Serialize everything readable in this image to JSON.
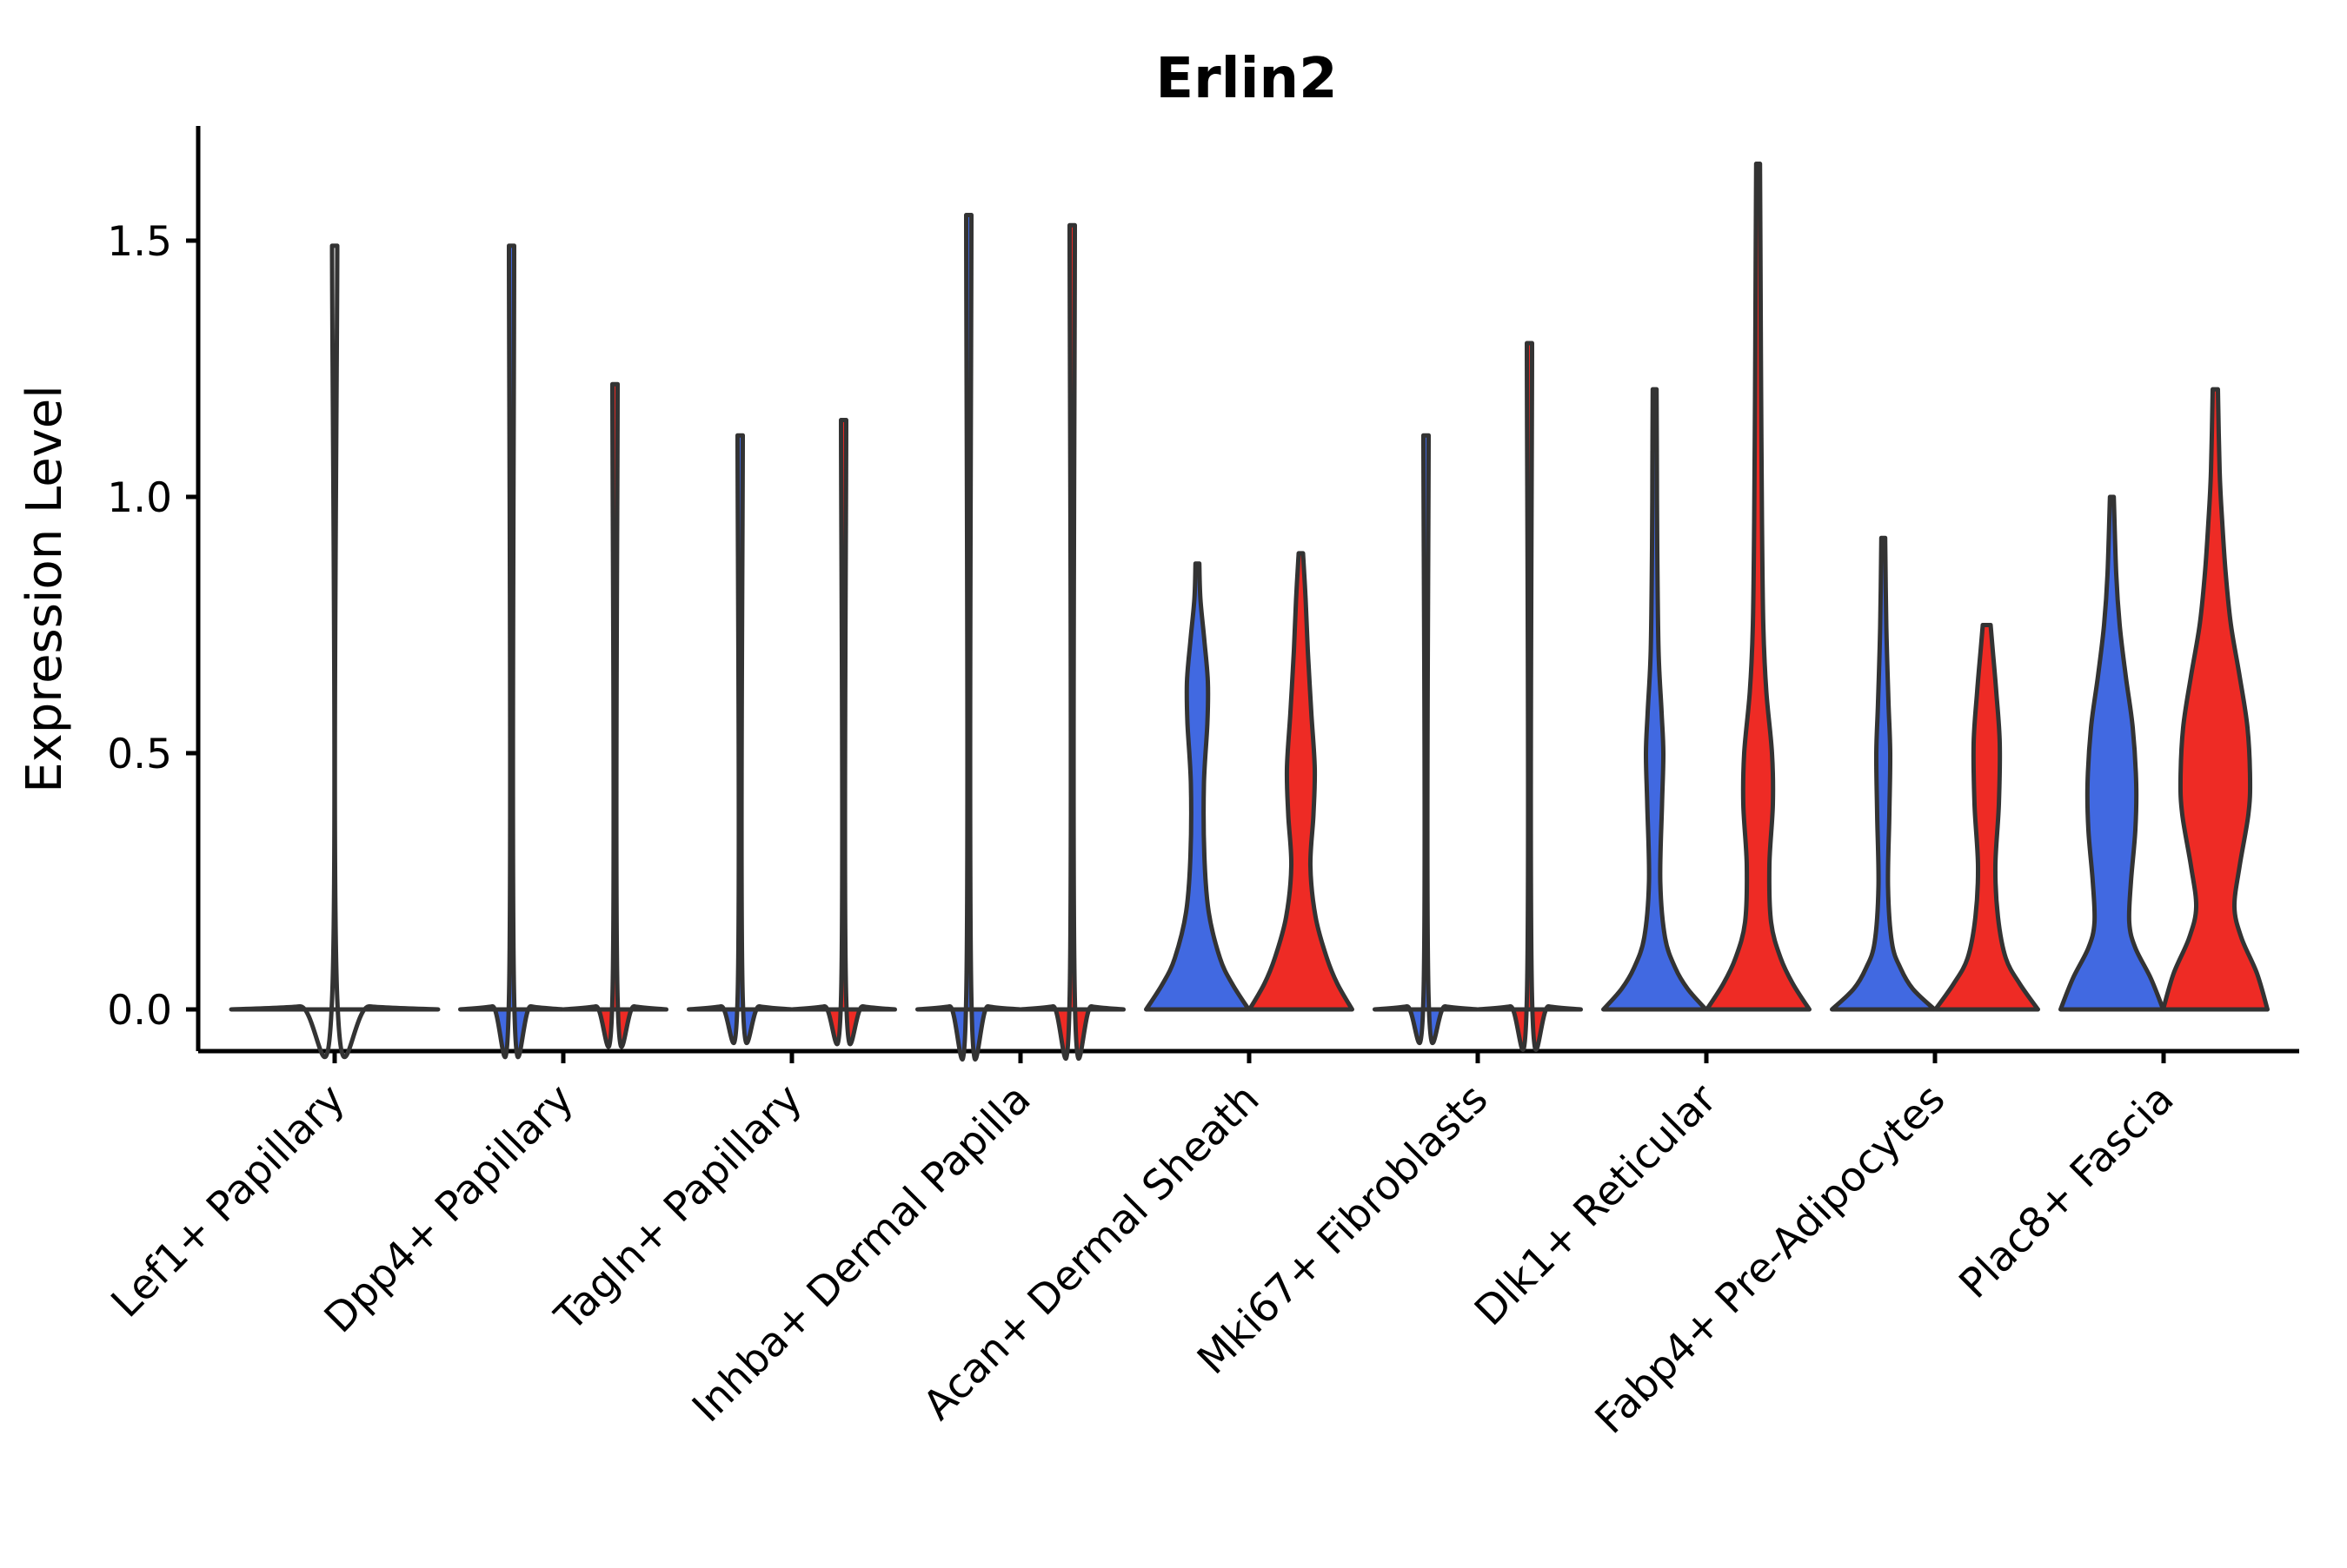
{
  "chart_data": {
    "type": "violin",
    "title": "Erlin2",
    "xlabel": "",
    "ylabel": "Expression Level",
    "ylim": [
      -0.08,
      1.72
    ],
    "yticks": [
      "0.0",
      "0.5",
      "1.0",
      "1.5"
    ],
    "ytick_values": [
      0.0,
      0.5,
      1.0,
      1.5
    ],
    "grid": false,
    "legend": null,
    "x_tick_rotation_deg": 45,
    "split_colors": {
      "left": "#4169E1",
      "right": "#EE2B25",
      "outline": "#333333",
      "axis": "#000000"
    },
    "categories": [
      {
        "label": "Lef1+ Papillary",
        "violins": [
          {
            "position": "center",
            "color": "none",
            "max": 1.49,
            "profile": [
              [
                0,
                119
              ],
              [
                0.006,
                40
              ],
              [
                0.02,
                3
              ],
              [
                1.49,
                3
              ]
            ]
          }
        ]
      },
      {
        "label": "Dpp4+ Papillary",
        "violins": [
          {
            "position": "left",
            "color": "#4169E1",
            "max": 1.49,
            "profile": [
              [
                0,
                59
              ],
              [
                0.006,
                22
              ],
              [
                0.02,
                3
              ],
              [
                1.49,
                3
              ]
            ]
          },
          {
            "position": "right",
            "color": "#EE2B25",
            "max": 1.22,
            "profile": [
              [
                0,
                59
              ],
              [
                0.006,
                22
              ],
              [
                0.02,
                3
              ],
              [
                1.22,
                3
              ]
            ]
          }
        ]
      },
      {
        "label": "Tagln+ Papillary",
        "violins": [
          {
            "position": "left",
            "color": "#4169E1",
            "max": 1.12,
            "profile": [
              [
                0,
                59
              ],
              [
                0.006,
                22
              ],
              [
                0.02,
                3
              ],
              [
                1.12,
                3
              ]
            ]
          },
          {
            "position": "right",
            "color": "#EE2B25",
            "max": 1.15,
            "profile": [
              [
                0,
                59
              ],
              [
                0.006,
                22
              ],
              [
                0.02,
                3
              ],
              [
                1.15,
                3
              ]
            ]
          }
        ]
      },
      {
        "label": "Inhba+ Dermal Papilla",
        "violins": [
          {
            "position": "left",
            "color": "#4169E1",
            "max": 1.55,
            "profile": [
              [
                0,
                59
              ],
              [
                0.006,
                22
              ],
              [
                0.02,
                3
              ],
              [
                1.55,
                3
              ]
            ]
          },
          {
            "position": "right",
            "color": "#EE2B25",
            "max": 1.53,
            "profile": [
              [
                0,
                59
              ],
              [
                0.006,
                22
              ],
              [
                0.02,
                3
              ],
              [
                1.53,
                3
              ]
            ]
          }
        ]
      },
      {
        "label": "Acan+ Dermal Sheath",
        "violins": [
          {
            "position": "left",
            "color": "#4169E1",
            "max": 0.87,
            "profile": [
              [
                0,
                59
              ],
              [
                0.05,
                40
              ],
              [
                0.1,
                26
              ],
              [
                0.19,
                13
              ],
              [
                0.3,
                8
              ],
              [
                0.44,
                7.5
              ],
              [
                0.56,
                11.5
              ],
              [
                0.64,
                12
              ],
              [
                0.72,
                8
              ],
              [
                0.8,
                3.5
              ],
              [
                0.87,
                2.2
              ]
            ]
          },
          {
            "position": "right",
            "color": "#EE2B25",
            "max": 0.89,
            "profile": [
              [
                0,
                59
              ],
              [
                0.05,
                42
              ],
              [
                0.1,
                30
              ],
              [
                0.18,
                17
              ],
              [
                0.28,
                11
              ],
              [
                0.38,
                14.5
              ],
              [
                0.47,
                16
              ],
              [
                0.58,
                12
              ],
              [
                0.7,
                8
              ],
              [
                0.8,
                5.5
              ],
              [
                0.89,
                2.5
              ]
            ]
          }
        ]
      },
      {
        "label": "Mki67+ Fibroblasts",
        "violins": [
          {
            "position": "left",
            "color": "#4169E1",
            "max": 1.12,
            "profile": [
              [
                0,
                59
              ],
              [
                0.006,
                22
              ],
              [
                0.02,
                3
              ],
              [
                1.12,
                3
              ]
            ]
          },
          {
            "position": "right",
            "color": "#EE2B25",
            "max": 1.3,
            "profile": [
              [
                0,
                59
              ],
              [
                0.006,
                22
              ],
              [
                0.02,
                3
              ],
              [
                1.3,
                3
              ]
            ]
          }
        ]
      },
      {
        "label": "Dlk1+ Reticular",
        "violins": [
          {
            "position": "left",
            "color": "#4169E1",
            "max": 1.21,
            "profile": [
              [
                0,
                59
              ],
              [
                0.04,
                38
              ],
              [
                0.08,
                24
              ],
              [
                0.14,
                12
              ],
              [
                0.25,
                6.5
              ],
              [
                0.4,
                8.5
              ],
              [
                0.5,
                10
              ],
              [
                0.58,
                8
              ],
              [
                0.7,
                4.5
              ],
              [
                0.9,
                3
              ],
              [
                1.05,
                2.6
              ],
              [
                1.21,
                2.2
              ]
            ]
          },
          {
            "position": "right",
            "color": "#EE2B25",
            "max": 1.65,
            "profile": [
              [
                0,
                59
              ],
              [
                0.05,
                40
              ],
              [
                0.1,
                26
              ],
              [
                0.17,
                15
              ],
              [
                0.28,
                13
              ],
              [
                0.4,
                17
              ],
              [
                0.5,
                16
              ],
              [
                0.62,
                9.5
              ],
              [
                0.75,
                6
              ],
              [
                0.95,
                4.5
              ],
              [
                1.2,
                3.5
              ],
              [
                1.45,
                2.8
              ],
              [
                1.65,
                2.2
              ]
            ]
          }
        ]
      },
      {
        "label": "Fabp4+ Pre-Adipocytes",
        "violins": [
          {
            "position": "left",
            "color": "#4169E1",
            "max": 0.92,
            "profile": [
              [
                0,
                59
              ],
              [
                0.04,
                34
              ],
              [
                0.08,
                20
              ],
              [
                0.13,
                10
              ],
              [
                0.24,
                5.5
              ],
              [
                0.38,
                7
              ],
              [
                0.5,
                8
              ],
              [
                0.6,
                6
              ],
              [
                0.75,
                3.5
              ],
              [
                0.92,
                2.2
              ]
            ]
          },
          {
            "position": "right",
            "color": "#EE2B25",
            "max": 0.75,
            "profile": [
              [
                0,
                59
              ],
              [
                0.05,
                38
              ],
              [
                0.1,
                22
              ],
              [
                0.18,
                13
              ],
              [
                0.28,
                10
              ],
              [
                0.4,
                14
              ],
              [
                0.52,
                15
              ],
              [
                0.62,
                11
              ],
              [
                0.7,
                7
              ],
              [
                0.75,
                4.5
              ]
            ]
          }
        ]
      },
      {
        "label": "Plac8+ Fascia",
        "violins": [
          {
            "position": "left",
            "color": "#4169E1",
            "max": 1.0,
            "profile": [
              [
                0,
                59
              ],
              [
                0.06,
                45
              ],
              [
                0.12,
                27
              ],
              [
                0.17,
                20
              ],
              [
                0.25,
                22
              ],
              [
                0.35,
                27
              ],
              [
                0.44,
                28
              ],
              [
                0.55,
                24
              ],
              [
                0.65,
                16
              ],
              [
                0.75,
                9
              ],
              [
                0.85,
                5
              ],
              [
                1.0,
                2.2
              ]
            ]
          },
          {
            "position": "right",
            "color": "#EE2B25",
            "max": 1.21,
            "profile": [
              [
                0,
                60
              ],
              [
                0.07,
                48
              ],
              [
                0.14,
                30
              ],
              [
                0.2,
                22
              ],
              [
                0.28,
                28
              ],
              [
                0.38,
                38
              ],
              [
                0.45,
                40
              ],
              [
                0.55,
                37
              ],
              [
                0.65,
                28
              ],
              [
                0.75,
                18
              ],
              [
                0.85,
                12
              ],
              [
                0.95,
                8
              ],
              [
                1.05,
                5
              ],
              [
                1.21,
                3
              ]
            ]
          }
        ]
      }
    ]
  }
}
